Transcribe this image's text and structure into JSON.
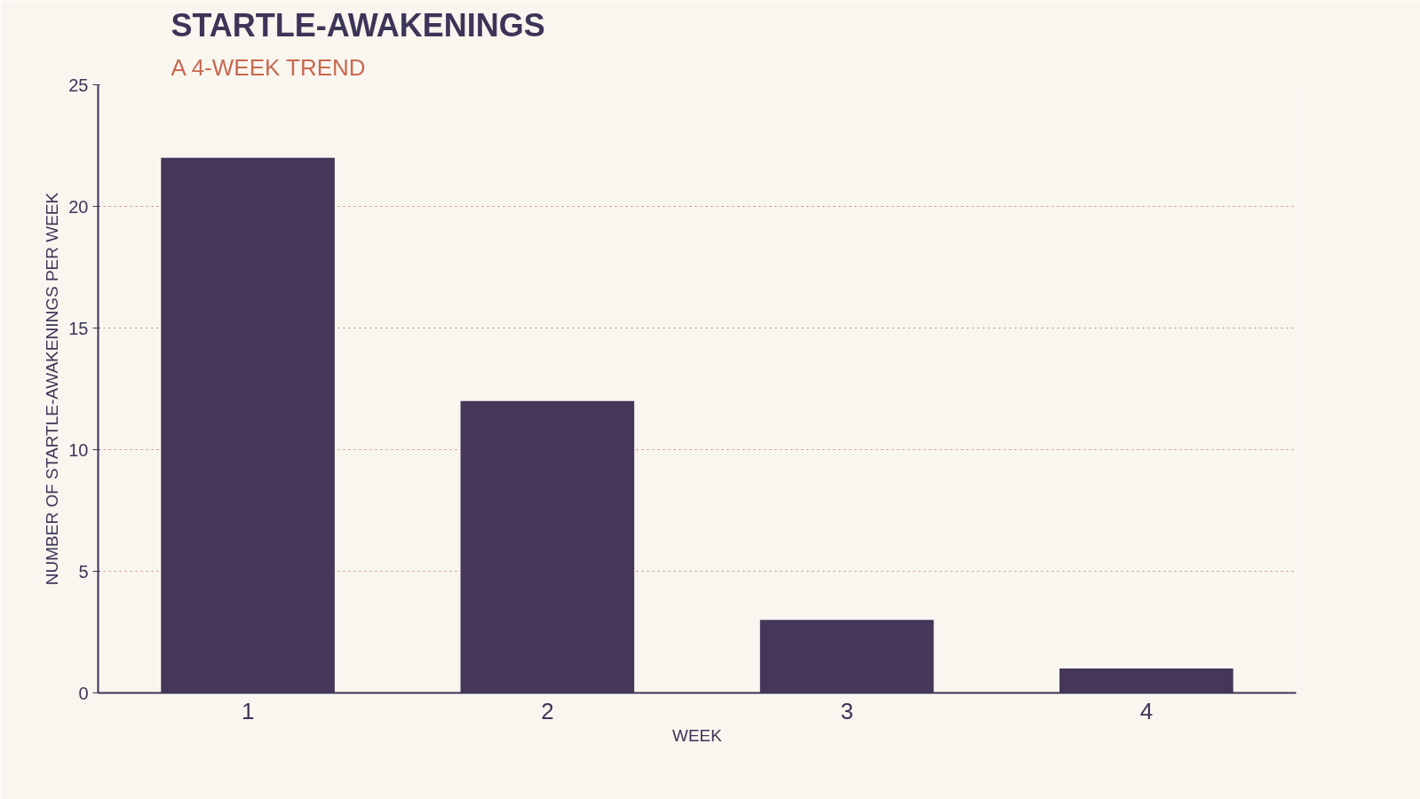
{
  "chart_data": {
    "type": "bar",
    "title": "STARTLE-AWAKENINGS",
    "subtitle": "A 4-WEEK TREND",
    "xlabel": "WEEK",
    "ylabel": "NUMBER OF STARTLE-AWAKENINGS PER WEEK",
    "categories": [
      "1",
      "2",
      "3",
      "4"
    ],
    "values": [
      22,
      12,
      3,
      1
    ],
    "color": "#45365a",
    "ylim": [
      0,
      25
    ],
    "yticks": [
      0,
      5,
      10,
      15,
      20,
      25
    ],
    "grid": "y"
  }
}
